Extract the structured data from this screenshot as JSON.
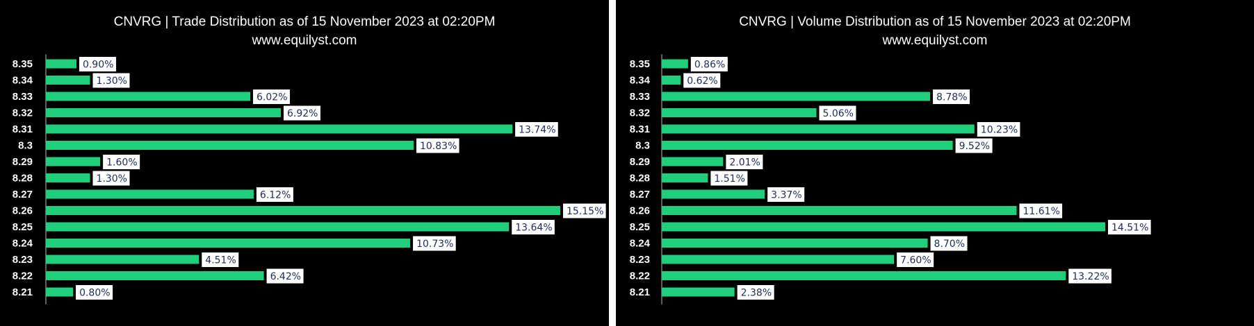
{
  "colors": {
    "background": "#000000",
    "bar": "#1fcf7b",
    "label_text": "#1f2a5c",
    "label_box": "#ffffff"
  },
  "chart_data": [
    {
      "type": "bar",
      "orientation": "horizontal",
      "title": "CNVRG | Trade Distribution as of 15 November 2023 at 02:20PM",
      "subtitle": "www.equilyst.com",
      "categories": [
        "8.35",
        "8.34",
        "8.33",
        "8.32",
        "8.31",
        "8.3",
        "8.29",
        "8.28",
        "8.27",
        "8.26",
        "8.25",
        "8.24",
        "8.23",
        "8.22",
        "8.21"
      ],
      "values": [
        0.9,
        1.3,
        6.02,
        6.92,
        13.74,
        10.83,
        1.6,
        1.3,
        6.12,
        15.15,
        13.64,
        10.73,
        4.51,
        6.42,
        0.8
      ],
      "labels": [
        "0.90%",
        "1.30%",
        "6.02%",
        "6.92%",
        "13.74%",
        "10.83%",
        "1.60%",
        "1.30%",
        "6.12%",
        "15.15%",
        "13.64%",
        "10.73%",
        "4.51%",
        "6.42%",
        "0.80%"
      ],
      "xlim": [
        0,
        15.15
      ],
      "grid": false,
      "legend": "none"
    },
    {
      "type": "bar",
      "orientation": "horizontal",
      "title": "CNVRG | Volume Distribution as of 15 November 2023 at 02:20PM",
      "subtitle": "www.equilyst.com",
      "categories": [
        "8.35",
        "8.34",
        "8.33",
        "8.32",
        "8.31",
        "8.3",
        "8.29",
        "8.28",
        "8.27",
        "8.26",
        "8.25",
        "8.24",
        "8.23",
        "8.22",
        "8.21"
      ],
      "values": [
        0.86,
        0.62,
        8.78,
        5.06,
        10.23,
        9.52,
        2.01,
        1.51,
        3.37,
        11.61,
        14.51,
        8.7,
        7.6,
        13.22,
        2.38
      ],
      "labels": [
        "0.86%",
        "0.62%",
        "8.78%",
        "5.06%",
        "10.23%",
        "9.52%",
        "2.01%",
        "1.51%",
        "3.37%",
        "11.61%",
        "14.51%",
        "8.70%",
        "7.60%",
        "13.22%",
        "2.38%"
      ],
      "xlim": [
        0,
        14.51
      ],
      "grid": false,
      "legend": "none"
    }
  ]
}
